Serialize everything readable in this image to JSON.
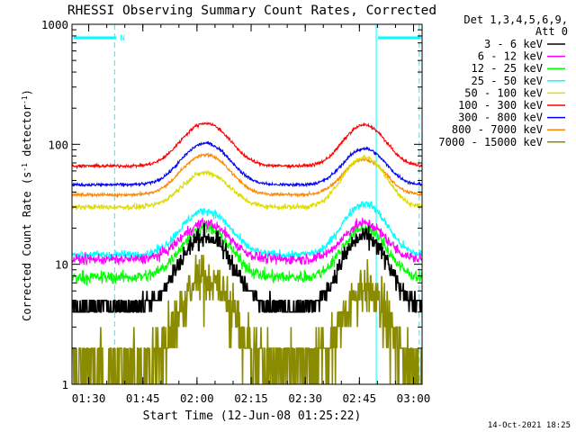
{
  "chart_data": {
    "type": "line",
    "title": "RHESSI Observing Summary Count Rates, Corrected",
    "xlabel": "Start Time (12-Jun-08 01:25:22)",
    "ylabel_main": "Corrected Count Rate (s",
    "ylabel_sup1": "-1",
    "ylabel_mid": " detector",
    "ylabel_sup2": "-1",
    "ylabel_end": ")",
    "x_axis": {
      "unit": "minutes since 01:25:22",
      "range": [
        0,
        97
      ],
      "ticks": [
        {
          "value": 4.63,
          "label": "01:30"
        },
        {
          "value": 19.63,
          "label": "01:45"
        },
        {
          "value": 34.63,
          "label": "02:00"
        },
        {
          "value": 49.63,
          "label": "02:15"
        },
        {
          "value": 64.63,
          "label": "02:30"
        },
        {
          "value": 79.63,
          "label": "02:45"
        },
        {
          "value": 94.63,
          "label": "03:00"
        }
      ]
    },
    "y_axis": {
      "scale": "log",
      "range": [
        1,
        1000
      ],
      "ticks": [
        {
          "value": 1,
          "label": "1"
        },
        {
          "value": 10,
          "label": "10"
        },
        {
          "value": 100,
          "label": "100"
        },
        {
          "value": 1000,
          "label": "1000"
        }
      ]
    },
    "legend": {
      "position": "top-right, outside plot",
      "header_line1": "Det 1,3,4,5,6,9,",
      "header_line2": "Att 0"
    },
    "night_intervals": [
      {
        "start": 0,
        "end": 11.8
      },
      {
        "start": 84.3,
        "end": 96.2
      }
    ],
    "night_marker": "N",
    "eclipse_lines": [
      0,
      11.8,
      84.3,
      96.2
    ],
    "eclipse_line_color": "#00ffff",
    "orbit_peaks": [
      37,
      81
    ],
    "series": [
      {
        "name": "3 - 6 keV",
        "color": "#000000",
        "baseline": 4.5,
        "peaks": [
          17,
          17
        ],
        "noise": 0.18,
        "quantized": true
      },
      {
        "name": "6 - 12 keV",
        "color": "#ff00ff",
        "baseline": 11,
        "peaks": [
          22,
          22
        ],
        "noise": 0.1
      },
      {
        "name": "12 - 25 keV",
        "color": "#00ff00",
        "baseline": 7.8,
        "peaks": [
          20,
          20
        ],
        "noise": 0.12
      },
      {
        "name": "25 - 50 keV",
        "color": "#00ffff",
        "baseline": 12,
        "peaks": [
          28,
          32
        ],
        "noise": 0.08
      },
      {
        "name": "50 - 100 keV",
        "color": "#dddd00",
        "baseline": 30,
        "peaks": [
          58,
          78
        ],
        "noise": 0.05
      },
      {
        "name": "100 - 300 keV",
        "color": "#ff0000",
        "baseline": 66,
        "peaks": [
          150,
          145
        ],
        "noise": 0.03
      },
      {
        "name": "300 - 800 keV",
        "color": "#0000ff",
        "baseline": 46,
        "peaks": [
          102,
          92
        ],
        "noise": 0.03
      },
      {
        "name": "800 - 7000 keV",
        "color": "#ff8800",
        "baseline": 38,
        "peaks": [
          82,
          75
        ],
        "noise": 0.03
      },
      {
        "name": "7000 - 15000 keV",
        "color": "#8b8b00",
        "baseline": 1.6,
        "peaks": [
          8,
          6.5
        ],
        "noise": 0.45,
        "quantized": true
      }
    ],
    "footer_timestamp": "14-Oct-2021 18:25"
  }
}
